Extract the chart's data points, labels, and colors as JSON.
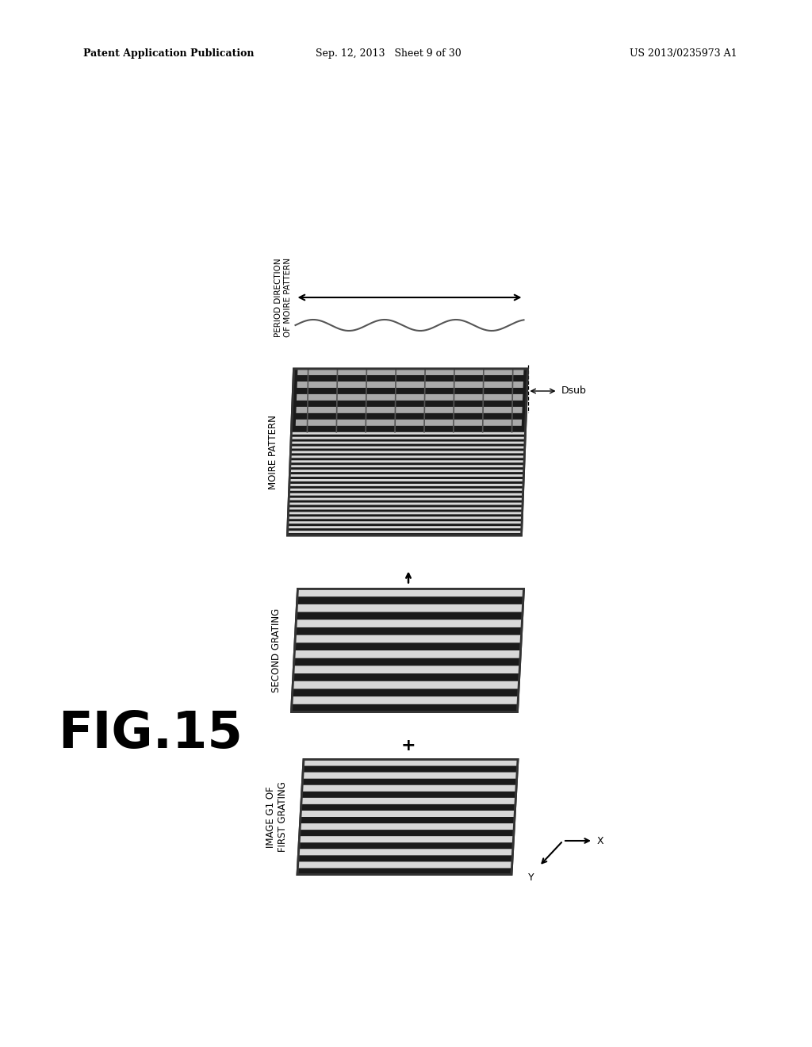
{
  "bg_color": "#ffffff",
  "header_left": "Patent Application Publication",
  "header_center": "Sep. 12, 2013   Sheet 9 of 30",
  "header_right": "US 2013/0235973 A1",
  "fig_label": "FIG.15",
  "panel1_label_line1": "IMAGE G1 OF",
  "panel1_label_line2": "FIRST GRATING",
  "panel2_label": "SECOND GRATING",
  "panel3_label": "MOIRE PATTERN",
  "period_label_line1": "PERIOD DIRECTION",
  "period_label_line2": "OF MOIRE PATTERN",
  "dsub_label": "Dsub",
  "plus_symbol": "+",
  "x_axis_label": "X",
  "y_axis_label": "Y",
  "dark_stripe": "#1a1a1a",
  "light_stripe": "#d8d8d8",
  "panel1_n_stripes": 9,
  "panel2_n_stripes": 8,
  "panel3_fine_stripes": 14,
  "panel3_coarse_stripes": 4
}
